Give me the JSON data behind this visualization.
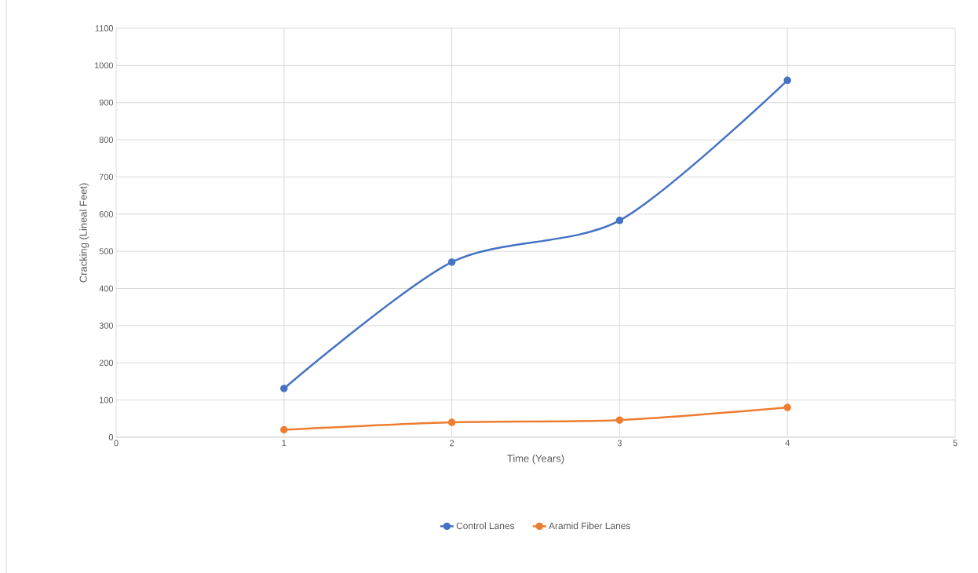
{
  "chart_data": {
    "type": "line",
    "xlabel": "Time (Years)",
    "ylabel": "Cracking (Lineal Feet)",
    "x": [
      1,
      2,
      3,
      4
    ],
    "series": [
      {
        "name": "Control Lanes",
        "color": "#4472c4",
        "values": [
          131,
          471,
          583,
          960
        ]
      },
      {
        "name": "Aramid Fiber Lanes",
        "color": "#ed7d31",
        "values": [
          20,
          40,
          46,
          80
        ]
      }
    ],
    "xlim": [
      0,
      5
    ],
    "xticks": [
      0,
      1,
      2,
      3,
      4,
      5
    ],
    "ylim": [
      0,
      1100
    ],
    "yticks": [
      0,
      100,
      200,
      300,
      400,
      500,
      600,
      700,
      800,
      900,
      1000,
      1100
    ],
    "grid": true,
    "legend": "bottom",
    "marker": "circle",
    "line_style": "solid"
  }
}
